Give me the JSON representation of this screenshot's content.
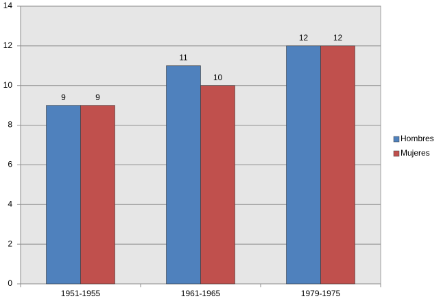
{
  "chart_data": {
    "type": "bar",
    "categories": [
      "1951-1955",
      "1961-1965",
      "1979-1975"
    ],
    "series": [
      {
        "name": "Hombres",
        "color": "#4f81bd",
        "values": [
          9,
          11,
          12
        ]
      },
      {
        "name": "Mujeres",
        "color": "#c0504d",
        "values": [
          9,
          10,
          12
        ]
      }
    ],
    "ylim": [
      0,
      14
    ],
    "yticks": [
      0,
      2,
      4,
      6,
      8,
      10,
      12,
      14
    ],
    "grid": true,
    "legend": "right"
  }
}
